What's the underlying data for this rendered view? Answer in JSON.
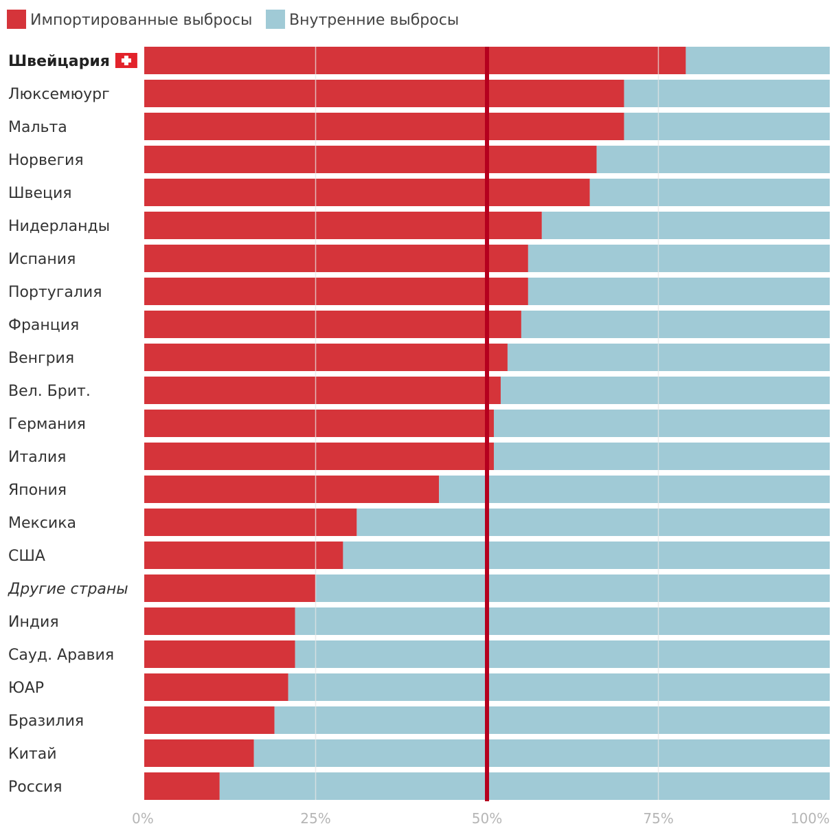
{
  "chart_data": {
    "type": "bar",
    "orientation": "horizontal",
    "stacked": true,
    "normalized_percent": true,
    "title": "",
    "xlabel": "",
    "ylabel": "",
    "xlim": [
      0,
      100
    ],
    "ticks": [
      0,
      25,
      50,
      75,
      100
    ],
    "tick_labels": [
      "0%",
      "25%",
      "50%",
      "75%",
      "100%"
    ],
    "reference_line": 50,
    "grid": true,
    "legend_position": "top-left",
    "highlight_category": "Швейцария",
    "italic_category": "Другие страны",
    "categories": [
      "Швейцария",
      "Люксемюург",
      "Мальта",
      "Норвегия",
      "Швеция",
      "Нидерланды",
      "Испания",
      "Португалия",
      "Франция",
      "Венгрия",
      "Вел. Брит.",
      "Германия",
      "Италия",
      "Япония",
      "Мексика",
      "США",
      "Другие страны",
      "Индия",
      "Сауд. Аравия",
      "ЮАР",
      "Бразилия",
      "Китай",
      "Россия"
    ],
    "series": [
      {
        "name": "Импортированные выбросы",
        "color": "#d5343a",
        "values": [
          79,
          70,
          70,
          66,
          65,
          58,
          56,
          56,
          55,
          53,
          52,
          51,
          51,
          43,
          31,
          29,
          25,
          22,
          22,
          21,
          19,
          16,
          11
        ]
      },
      {
        "name": "Внутренние выбросы",
        "color": "#a0cad6",
        "values": [
          21,
          30,
          30,
          34,
          35,
          42,
          44,
          44,
          45,
          47,
          48,
          49,
          49,
          57,
          69,
          71,
          75,
          78,
          78,
          79,
          81,
          84,
          89
        ]
      }
    ]
  },
  "colors": {
    "reference_line": "#b5001e",
    "grid": "#e6e6e6",
    "flag_bg": "#e2232b",
    "flag_cross": "#ffffff"
  }
}
